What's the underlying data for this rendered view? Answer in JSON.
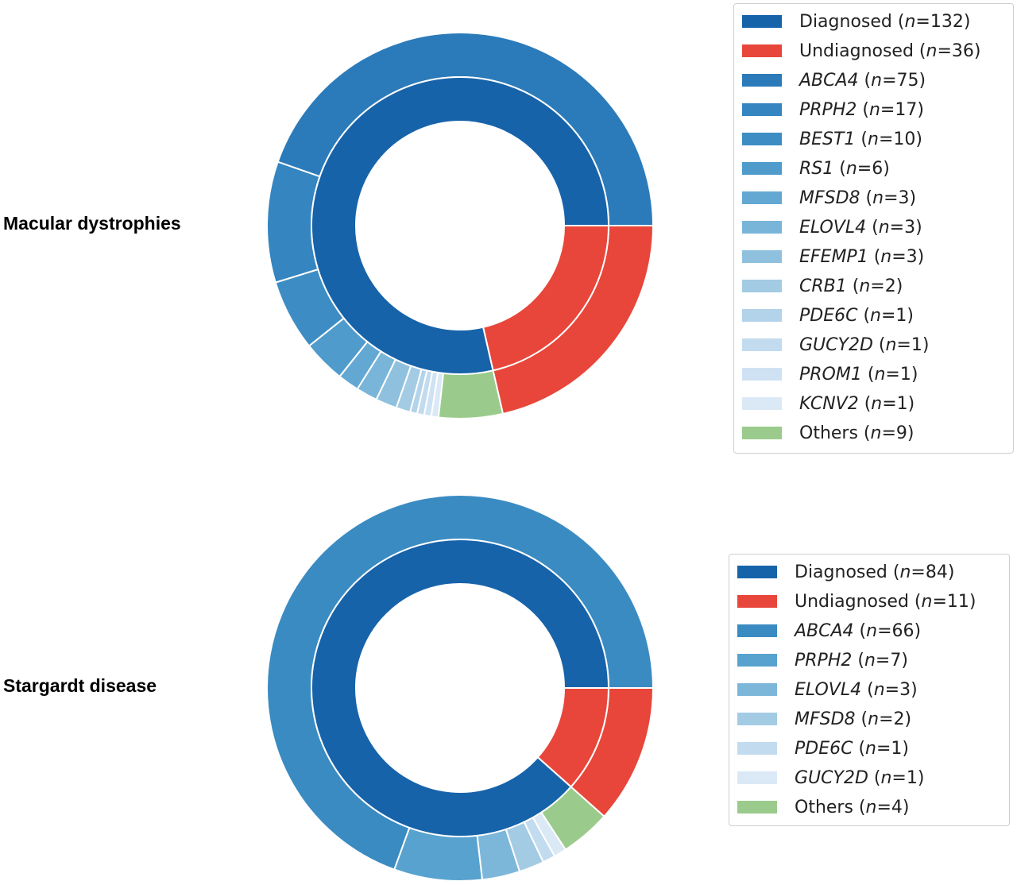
{
  "chart_data": [
    {
      "type": "pie",
      "title": "Macular dystrophies",
      "inner_ring": [
        {
          "label": "Diagnosed",
          "value": 132,
          "color": "#1763aa"
        },
        {
          "label": "Undiagnosed",
          "value": 36,
          "color": "#e8463a"
        }
      ],
      "outer_ring": [
        {
          "label": "ABCA4",
          "value": 75,
          "color": "#2b7bba",
          "gene": true
        },
        {
          "label": "PRPH2",
          "value": 17,
          "color": "#3485c0",
          "gene": true
        },
        {
          "label": "BEST1",
          "value": 10,
          "color": "#3d8dc4",
          "gene": true
        },
        {
          "label": "RS1",
          "value": 6,
          "color": "#4f9bcb",
          "gene": true
        },
        {
          "label": "MFSD8",
          "value": 3,
          "color": "#63a8d3",
          "gene": true
        },
        {
          "label": "ELOVL4",
          "value": 3,
          "color": "#79b5d9",
          "gene": true
        },
        {
          "label": "EFEMP1",
          "value": 3,
          "color": "#8fc1de",
          "gene": true
        },
        {
          "label": "CRB1",
          "value": 2,
          "color": "#a3cbe3",
          "gene": true
        },
        {
          "label": "PDE6C",
          "value": 1,
          "color": "#b3d3ea",
          "gene": true
        },
        {
          "label": "GUCY2D",
          "value": 1,
          "color": "#c2dbef",
          "gene": true
        },
        {
          "label": "PROM1",
          "value": 1,
          "color": "#cfe2f3",
          "gene": true
        },
        {
          "label": "KCNV2",
          "value": 1,
          "color": "#dbe9f6",
          "gene": true
        },
        {
          "label": "Others",
          "value": 9,
          "color": "#9acb8c",
          "gene": false
        },
        {
          "label": "Undiagnosed",
          "value": 36,
          "color": "#e8463a",
          "gene": false,
          "in_legend": false
        }
      ],
      "legend": [
        {
          "name": "Diagnosed",
          "gene": false,
          "count": "(n=132)",
          "color": "#1763aa"
        },
        {
          "name": "Undiagnosed",
          "gene": false,
          "count": "(n=36)",
          "color": "#e8463a"
        },
        {
          "name": "ABCA4",
          "gene": true,
          "count": "(n=75)",
          "color": "#2b7bba"
        },
        {
          "name": "PRPH2",
          "gene": true,
          "count": "(n=17)",
          "color": "#3485c0"
        },
        {
          "name": "BEST1",
          "gene": true,
          "count": "(n=10)",
          "color": "#3d8dc4"
        },
        {
          "name": "RS1",
          "gene": true,
          "count": "(n=6)",
          "color": "#4f9bcb"
        },
        {
          "name": "MFSD8",
          "gene": true,
          "count": "(n=3)",
          "color": "#63a8d3"
        },
        {
          "name": "ELOVL4",
          "gene": true,
          "count": "(n=3)",
          "color": "#79b5d9"
        },
        {
          "name": "EFEMP1",
          "gene": true,
          "count": "(n=3)",
          "color": "#8fc1de"
        },
        {
          "name": "CRB1",
          "gene": true,
          "count": "(n=2)",
          "color": "#a3cbe3"
        },
        {
          "name": "PDE6C",
          "gene": true,
          "count": "(n=1)",
          "color": "#b3d3ea"
        },
        {
          "name": "GUCY2D",
          "gene": true,
          "count": "(n=1)",
          "color": "#c2dbef"
        },
        {
          "name": "PROM1",
          "gene": true,
          "count": "(n=1)",
          "color": "#cfe2f3"
        },
        {
          "name": "KCNV2",
          "gene": true,
          "count": "(n=1)",
          "color": "#dbe9f6"
        },
        {
          "name": "Others",
          "gene": false,
          "count": "(n=9)",
          "color": "#9acb8c"
        }
      ],
      "legend_placement": "right"
    },
    {
      "type": "pie",
      "title": "Stargardt disease",
      "inner_ring": [
        {
          "label": "Diagnosed",
          "value": 84,
          "color": "#1763aa"
        },
        {
          "label": "Undiagnosed",
          "value": 11,
          "color": "#e8463a"
        }
      ],
      "outer_ring": [
        {
          "label": "ABCA4",
          "value": 66,
          "color": "#3a8bc2",
          "gene": true
        },
        {
          "label": "PRPH2",
          "value": 7,
          "color": "#58a2cf",
          "gene": true
        },
        {
          "label": "ELOVL4",
          "value": 3,
          "color": "#7cb7da",
          "gene": true
        },
        {
          "label": "MFSD8",
          "value": 2,
          "color": "#a3cbe3",
          "gene": true
        },
        {
          "label": "PDE6C",
          "value": 1,
          "color": "#c2dbef",
          "gene": true
        },
        {
          "label": "GUCY2D",
          "value": 1,
          "color": "#dbe9f6",
          "gene": true
        },
        {
          "label": "Others",
          "value": 4,
          "color": "#9acb8c",
          "gene": false
        },
        {
          "label": "Undiagnosed",
          "value": 11,
          "color": "#e8463a",
          "gene": false,
          "in_legend": false
        }
      ],
      "legend": [
        {
          "name": "Diagnosed",
          "gene": false,
          "count": "(n=84)",
          "color": "#1763aa"
        },
        {
          "name": "Undiagnosed",
          "gene": false,
          "count": "(n=11)",
          "color": "#e8463a"
        },
        {
          "name": "ABCA4",
          "gene": true,
          "count": "(n=66)",
          "color": "#3a8bc2"
        },
        {
          "name": "PRPH2",
          "gene": true,
          "count": "(n=7)",
          "color": "#58a2cf"
        },
        {
          "name": "ELOVL4",
          "gene": true,
          "count": "(n=3)",
          "color": "#7cb7da"
        },
        {
          "name": "MFSD8",
          "gene": true,
          "count": "(n=2)",
          "color": "#a3cbe3"
        },
        {
          "name": "PDE6C",
          "gene": true,
          "count": "(n=1)",
          "color": "#c2dbef"
        },
        {
          "name": "GUCY2D",
          "gene": true,
          "count": "(n=1)",
          "color": "#dbe9f6"
        },
        {
          "name": "Others",
          "gene": false,
          "count": "(n=4)",
          "color": "#9acb8c"
        }
      ],
      "legend_placement": "right"
    }
  ]
}
